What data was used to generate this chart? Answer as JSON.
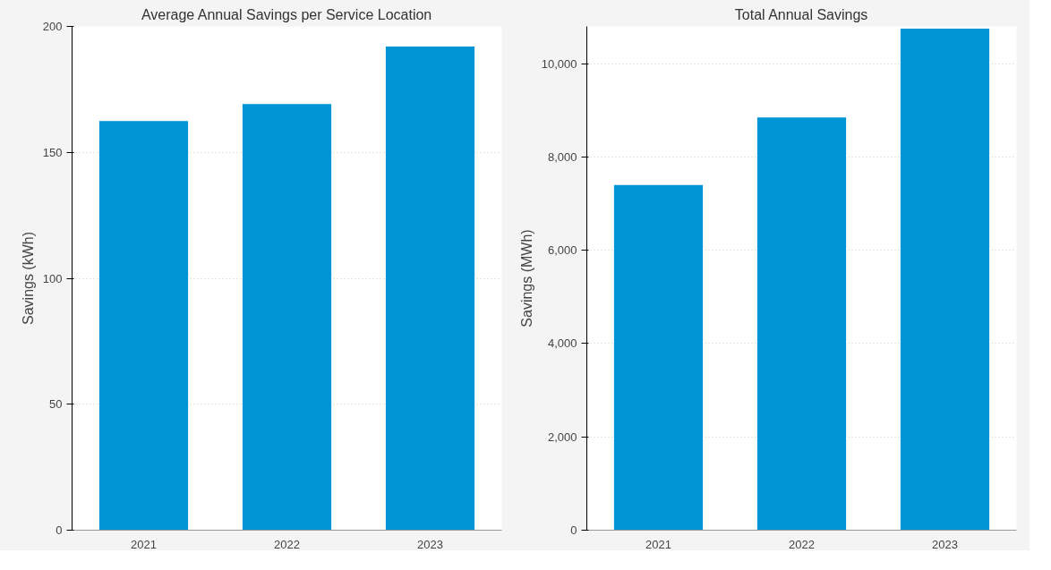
{
  "chart_data": [
    {
      "type": "bar",
      "title": "Average Annual Savings per Service Location",
      "ylabel": "Savings (kWh)",
      "categories": [
        "2021",
        "2022",
        "2023"
      ],
      "values": [
        162.4,
        169.2,
        192
      ],
      "color": "#0096d6",
      "ylim": [
        0,
        200
      ],
      "yticks": [
        0,
        50,
        100,
        150,
        200
      ],
      "grid": "y"
    },
    {
      "type": "bar",
      "title": "Total Annual Savings",
      "ylabel": "Savings (MWh)",
      "categories": [
        "2021",
        "2022",
        "2023"
      ],
      "values": [
        7400,
        8850,
        10750
      ],
      "color": "#0096d6",
      "ylim": [
        0,
        10800
      ],
      "yticks": [
        {
          "value": 0,
          "label": "0"
        },
        {
          "value": 2000,
          "label": "2,000"
        },
        {
          "value": 4000,
          "label": "4,000"
        },
        {
          "value": 6000,
          "label": "6,000"
        },
        {
          "value": 8000,
          "label": "8,000"
        },
        {
          "value": 10000,
          "label": "10,000"
        }
      ],
      "grid": "y"
    }
  ]
}
